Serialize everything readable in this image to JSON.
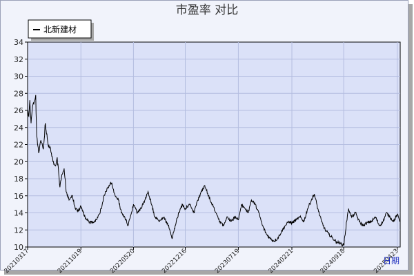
{
  "chart_data": {
    "type": "line",
    "title": "市盈率  对比",
    "xlabel": "日期",
    "ylabel": "",
    "ylim": [
      10,
      34
    ],
    "yticks": [
      10,
      12,
      14,
      16,
      18,
      20,
      22,
      24,
      26,
      28,
      30,
      32,
      34
    ],
    "grid": true,
    "legend_position": "top-left",
    "x_tick_labels": [
      "20210317",
      "20211019",
      "20220520",
      "20221216",
      "20230719",
      "20240221",
      "20240918",
      "20250423"
    ],
    "series": [
      {
        "name": "北新建材",
        "color": "#000000",
        "anchors": [
          [
            "2021-03-17",
            26.0
          ],
          [
            "2021-03-22",
            25.3
          ],
          [
            "2021-03-26",
            27.2
          ],
          [
            "2021-03-31",
            24.5
          ],
          [
            "2021-04-06",
            26.5
          ],
          [
            "2021-04-13",
            27.0
          ],
          [
            "2021-04-19",
            27.8
          ],
          [
            "2021-04-23",
            23.0
          ],
          [
            "2021-05-01",
            21.0
          ],
          [
            "2021-05-10",
            22.5
          ],
          [
            "2021-05-20",
            21.5
          ],
          [
            "2021-05-28",
            24.5
          ],
          [
            "2021-06-08",
            22.0
          ],
          [
            "2021-06-18",
            21.5
          ],
          [
            "2021-06-28",
            20.0
          ],
          [
            "2021-07-08",
            19.5
          ],
          [
            "2021-07-15",
            20.5
          ],
          [
            "2021-07-26",
            17.0
          ],
          [
            "2021-08-03",
            18.5
          ],
          [
            "2021-08-12",
            19.2
          ],
          [
            "2021-08-20",
            16.5
          ],
          [
            "2021-09-01",
            15.5
          ],
          [
            "2021-09-15",
            16.0
          ],
          [
            "2021-09-26",
            14.5
          ],
          [
            "2021-10-08",
            14.2
          ],
          [
            "2021-10-19",
            14.8
          ],
          [
            "2021-11-05",
            13.5
          ],
          [
            "2021-11-20",
            13.0
          ],
          [
            "2021-12-05",
            12.8
          ],
          [
            "2021-12-20",
            13.2
          ],
          [
            "2022-01-05",
            14.0
          ],
          [
            "2022-01-20",
            16.0
          ],
          [
            "2022-02-05",
            17.0
          ],
          [
            "2022-02-20",
            17.5
          ],
          [
            "2022-03-05",
            16.2
          ],
          [
            "2022-03-20",
            15.5
          ],
          [
            "2022-04-01",
            14.0
          ],
          [
            "2022-04-15",
            13.5
          ],
          [
            "2022-04-28",
            12.5
          ],
          [
            "2022-05-10",
            13.8
          ],
          [
            "2022-05-20",
            15.0
          ],
          [
            "2022-06-05",
            14.0
          ],
          [
            "2022-06-20",
            14.5
          ],
          [
            "2022-07-05",
            15.5
          ],
          [
            "2022-07-18",
            16.5
          ],
          [
            "2022-08-01",
            15.0
          ],
          [
            "2022-08-15",
            13.5
          ],
          [
            "2022-09-01",
            13.0
          ],
          [
            "2022-09-20",
            13.5
          ],
          [
            "2022-10-08",
            12.5
          ],
          [
            "2022-10-24",
            11.0
          ],
          [
            "2022-11-05",
            12.5
          ],
          [
            "2022-11-20",
            14.0
          ],
          [
            "2022-12-05",
            15.0
          ],
          [
            "2022-12-16",
            14.5
          ],
          [
            "2023-01-05",
            15.0
          ],
          [
            "2023-01-20",
            14.0
          ],
          [
            "2023-02-05",
            15.5
          ],
          [
            "2023-02-20",
            16.5
          ],
          [
            "2023-03-05",
            17.2
          ],
          [
            "2023-03-20",
            16.0
          ],
          [
            "2023-04-05",
            15.0
          ],
          [
            "2023-04-20",
            14.0
          ],
          [
            "2023-05-05",
            13.0
          ],
          [
            "2023-05-20",
            12.5
          ],
          [
            "2023-06-05",
            13.5
          ],
          [
            "2023-06-20",
            13.0
          ],
          [
            "2023-07-05",
            13.5
          ],
          [
            "2023-07-19",
            13.2
          ],
          [
            "2023-08-01",
            15.0
          ],
          [
            "2023-08-15",
            14.5
          ],
          [
            "2023-08-28",
            14.0
          ],
          [
            "2023-09-10",
            15.5
          ],
          [
            "2023-09-25",
            15.0
          ],
          [
            "2023-10-10",
            14.0
          ],
          [
            "2023-10-25",
            12.5
          ],
          [
            "2023-11-10",
            11.5
          ],
          [
            "2023-11-25",
            11.0
          ],
          [
            "2023-12-10",
            10.7
          ],
          [
            "2023-12-25",
            11.0
          ],
          [
            "2024-01-10",
            11.8
          ],
          [
            "2024-01-25",
            12.5
          ],
          [
            "2024-02-10",
            13.0
          ],
          [
            "2024-02-21",
            12.8
          ],
          [
            "2024-03-10",
            13.2
          ],
          [
            "2024-03-25",
            13.5
          ],
          [
            "2024-04-10",
            13.0
          ],
          [
            "2024-04-25",
            14.5
          ],
          [
            "2024-05-10",
            15.5
          ],
          [
            "2024-05-22",
            16.2
          ],
          [
            "2024-06-05",
            14.5
          ],
          [
            "2024-06-20",
            13.0
          ],
          [
            "2024-07-05",
            12.0
          ],
          [
            "2024-07-20",
            11.5
          ],
          [
            "2024-08-05",
            11.0
          ],
          [
            "2024-08-20",
            10.6
          ],
          [
            "2024-09-05",
            10.4
          ],
          [
            "2024-09-18",
            10.2
          ],
          [
            "2024-09-30",
            13.0
          ],
          [
            "2024-10-08",
            14.5
          ],
          [
            "2024-10-20",
            13.5
          ],
          [
            "2024-11-05",
            14.0
          ],
          [
            "2024-11-20",
            13.0
          ],
          [
            "2024-12-05",
            12.5
          ],
          [
            "2024-12-20",
            12.8
          ],
          [
            "2025-01-08",
            13.0
          ],
          [
            "2025-01-25",
            13.5
          ],
          [
            "2025-02-10",
            12.5
          ],
          [
            "2025-02-25",
            13.0
          ],
          [
            "2025-03-10",
            14.0
          ],
          [
            "2025-03-25",
            13.5
          ],
          [
            "2025-04-08",
            13.0
          ],
          [
            "2025-04-23",
            13.8
          ],
          [
            "2025-05-05",
            13.0
          ]
        ]
      }
    ]
  }
}
